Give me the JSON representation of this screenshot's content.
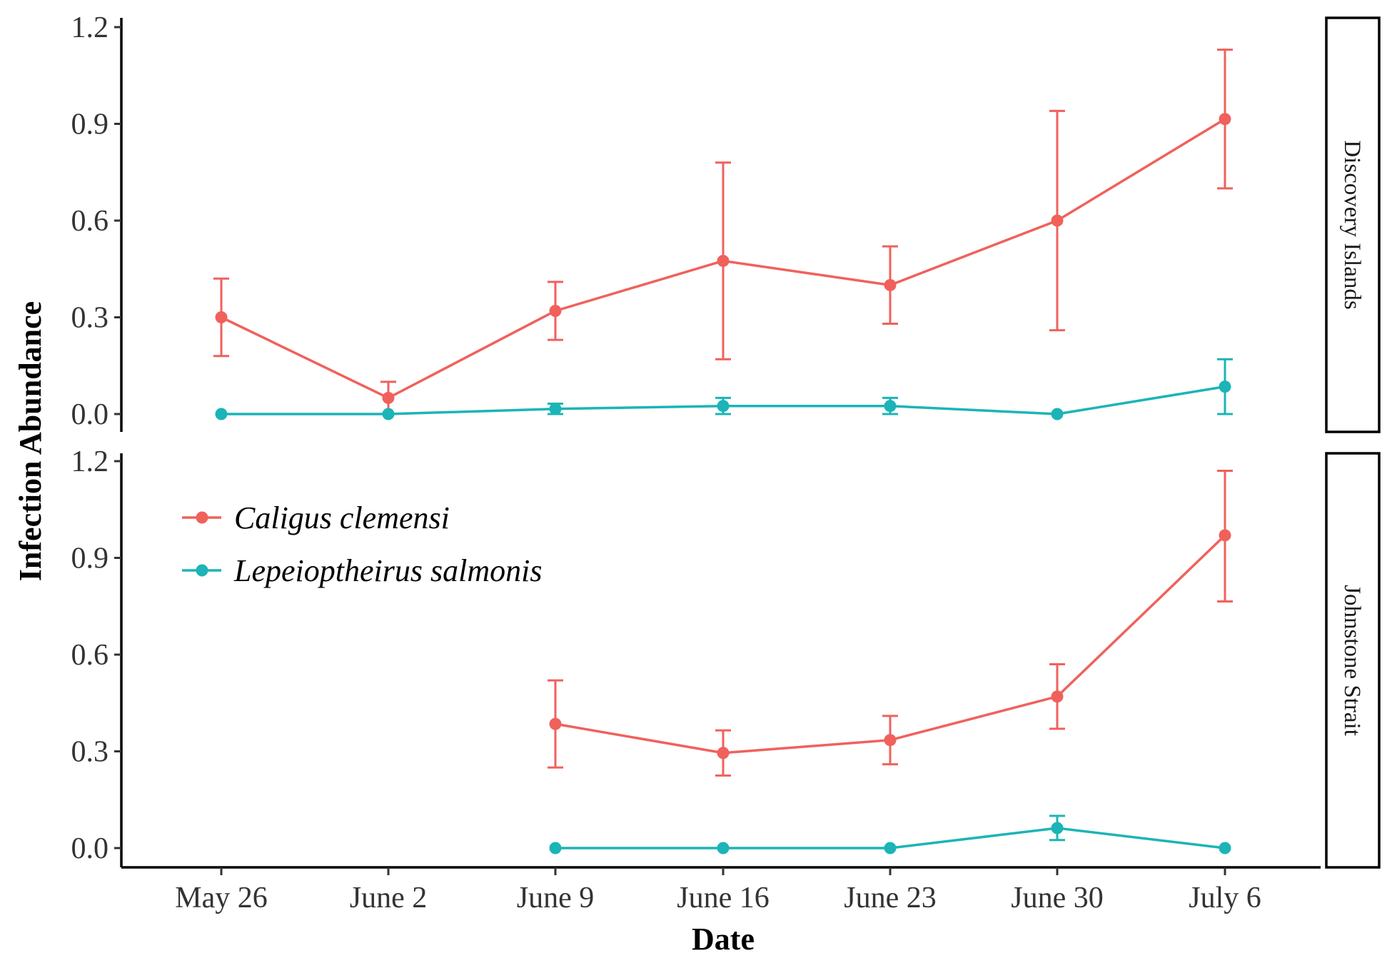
{
  "chart_data": {
    "type": "line",
    "xlabel": "Date",
    "ylabel": "Infection Abundance",
    "categories": [
      "May 26",
      "June 2",
      "June 9",
      "June 16",
      "June 23",
      "June 30",
      "July 6"
    ],
    "ylim": [
      0,
      1.2
    ],
    "yticks": [
      "0.0",
      "0.3",
      "0.6",
      "0.9",
      "1.2"
    ],
    "grid": false,
    "legend_position": "top-left of lower panel",
    "error_bars": true,
    "panels": [
      {
        "name": "Discovery Islands",
        "series": [
          {
            "name": "Caligus clemensi",
            "color": "#F0615C",
            "values": [
              0.3,
              0.05,
              0.32,
              0.475,
              0.4,
              0.6,
              0.915
            ],
            "lower": [
              0.18,
              0.0,
              0.23,
              0.17,
              0.28,
              0.26,
              0.7
            ],
            "upper": [
              0.42,
              0.1,
              0.41,
              0.78,
              0.52,
              0.94,
              1.13
            ]
          },
          {
            "name": "Lepeioptheirus salmonis",
            "color": "#1CB4B7",
            "values": [
              0.0,
              0.0,
              0.016,
              0.025,
              0.025,
              0.0,
              0.085
            ],
            "lower": [
              0.0,
              0.0,
              0.0,
              0.0,
              0.0,
              0.0,
              0.0
            ],
            "upper": [
              0.0,
              0.0,
              0.032,
              0.05,
              0.05,
              0.0,
              0.17
            ]
          }
        ]
      },
      {
        "name": "Johnstone Strait",
        "series": [
          {
            "name": "Caligus clemensi",
            "color": "#F0615C",
            "values": [
              null,
              null,
              0.385,
              0.295,
              0.335,
              0.47,
              0.97
            ],
            "lower": [
              null,
              null,
              0.25,
              0.225,
              0.26,
              0.37,
              0.765
            ],
            "upper": [
              null,
              null,
              0.52,
              0.365,
              0.41,
              0.57,
              1.17
            ]
          },
          {
            "name": "Lepeioptheirus salmonis",
            "color": "#1CB4B7",
            "values": [
              null,
              null,
              0.0,
              0.0,
              0.0,
              0.062,
              0.0
            ],
            "lower": [
              null,
              null,
              0.0,
              0.0,
              0.0,
              0.025,
              0.0
            ],
            "upper": [
              null,
              null,
              0.0,
              0.0,
              0.0,
              0.1,
              0.0
            ]
          }
        ]
      }
    ],
    "legend": [
      {
        "label": "Caligus clemensi",
        "color": "#F0615C"
      },
      {
        "label": "Lepeioptheirus salmonis",
        "color": "#1CB4B7"
      }
    ]
  }
}
